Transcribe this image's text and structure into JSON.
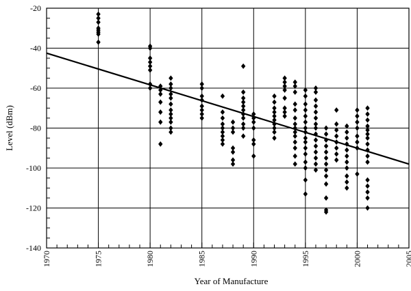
{
  "chart_data": {
    "type": "scatter",
    "title": "",
    "xlabel": "Year of Manufacture",
    "ylabel": "Level (dBm)",
    "xlim": [
      1970,
      2005
    ],
    "ylim": [
      -140,
      -20
    ],
    "x_ticks": [
      1970,
      1975,
      1980,
      1985,
      1990,
      1995,
      2000,
      2005
    ],
    "y_ticks": [
      -20,
      -40,
      -60,
      -80,
      -100,
      -120,
      -140
    ],
    "x_minor_step": 1,
    "y_minor_step": 5,
    "grid": true,
    "legend": "none",
    "marker_color": "#000000",
    "marker": "diamond",
    "series": [
      {
        "points": [
          [
            1975,
            -23
          ],
          [
            1975,
            -25
          ],
          [
            1975,
            -27
          ],
          [
            1975,
            -30
          ],
          [
            1975,
            -31
          ],
          [
            1975,
            -32
          ],
          [
            1975,
            -33
          ],
          [
            1975,
            -37
          ],
          [
            1980,
            -39
          ],
          [
            1980,
            -40
          ],
          [
            1980,
            -45
          ],
          [
            1980,
            -47
          ],
          [
            1980,
            -49
          ],
          [
            1980,
            -51
          ],
          [
            1980,
            -58
          ],
          [
            1980,
            -60
          ],
          [
            1981,
            -59
          ],
          [
            1981,
            -61
          ],
          [
            1981,
            -63
          ],
          [
            1981,
            -67
          ],
          [
            1981,
            -72
          ],
          [
            1981,
            -77
          ],
          [
            1981,
            -88
          ],
          [
            1982,
            -55
          ],
          [
            1982,
            -58
          ],
          [
            1982,
            -60
          ],
          [
            1982,
            -63
          ],
          [
            1982,
            -65
          ],
          [
            1982,
            -68
          ],
          [
            1982,
            -71
          ],
          [
            1982,
            -73
          ],
          [
            1982,
            -75
          ],
          [
            1982,
            -77
          ],
          [
            1982,
            -80
          ],
          [
            1982,
            -82
          ],
          [
            1985,
            -58
          ],
          [
            1985,
            -60
          ],
          [
            1985,
            -64
          ],
          [
            1985,
            -66
          ],
          [
            1985,
            -69
          ],
          [
            1985,
            -71
          ],
          [
            1985,
            -73
          ],
          [
            1985,
            -75
          ],
          [
            1987,
            -64
          ],
          [
            1987,
            -72
          ],
          [
            1987,
            -75
          ],
          [
            1987,
            -78
          ],
          [
            1987,
            -80
          ],
          [
            1987,
            -82
          ],
          [
            1987,
            -84
          ],
          [
            1987,
            -86
          ],
          [
            1987,
            -88
          ],
          [
            1988,
            -77
          ],
          [
            1988,
            -80
          ],
          [
            1988,
            -82
          ],
          [
            1988,
            -90
          ],
          [
            1988,
            -92
          ],
          [
            1988,
            -96
          ],
          [
            1988,
            -98
          ],
          [
            1989,
            -49
          ],
          [
            1989,
            -62
          ],
          [
            1989,
            -65
          ],
          [
            1989,
            -67
          ],
          [
            1989,
            -69
          ],
          [
            1989,
            -71
          ],
          [
            1989,
            -73
          ],
          [
            1989,
            -75
          ],
          [
            1989,
            -78
          ],
          [
            1989,
            -80
          ],
          [
            1989,
            -84
          ],
          [
            1990,
            -73
          ],
          [
            1990,
            -75
          ],
          [
            1990,
            -77
          ],
          [
            1990,
            -80
          ],
          [
            1990,
            -86
          ],
          [
            1990,
            -88
          ],
          [
            1990,
            -94
          ],
          [
            1992,
            -64
          ],
          [
            1992,
            -67
          ],
          [
            1992,
            -70
          ],
          [
            1992,
            -72
          ],
          [
            1992,
            -74
          ],
          [
            1992,
            -76
          ],
          [
            1992,
            -78
          ],
          [
            1992,
            -80
          ],
          [
            1992,
            -82
          ],
          [
            1992,
            -85
          ],
          [
            1993,
            -55
          ],
          [
            1993,
            -57
          ],
          [
            1993,
            -59
          ],
          [
            1993,
            -61
          ],
          [
            1993,
            -65
          ],
          [
            1993,
            -70
          ],
          [
            1993,
            -72
          ],
          [
            1993,
            -74
          ],
          [
            1994,
            -57
          ],
          [
            1994,
            -59
          ],
          [
            1994,
            -62
          ],
          [
            1994,
            -68
          ],
          [
            1994,
            -71
          ],
          [
            1994,
            -75
          ],
          [
            1994,
            -78
          ],
          [
            1994,
            -80
          ],
          [
            1994,
            -82
          ],
          [
            1994,
            -84
          ],
          [
            1994,
            -87
          ],
          [
            1994,
            -90
          ],
          [
            1994,
            -94
          ],
          [
            1994,
            -98
          ],
          [
            1995,
            -61
          ],
          [
            1995,
            -64
          ],
          [
            1995,
            -68
          ],
          [
            1995,
            -71
          ],
          [
            1995,
            -74
          ],
          [
            1995,
            -77
          ],
          [
            1995,
            -80
          ],
          [
            1995,
            -82
          ],
          [
            1995,
            -85
          ],
          [
            1995,
            -87
          ],
          [
            1995,
            -90
          ],
          [
            1995,
            -93
          ],
          [
            1995,
            -97
          ],
          [
            1995,
            -100
          ],
          [
            1995,
            -106
          ],
          [
            1995,
            -113
          ],
          [
            1996,
            -60
          ],
          [
            1996,
            -62
          ],
          [
            1996,
            -66
          ],
          [
            1996,
            -69
          ],
          [
            1996,
            -72
          ],
          [
            1996,
            -75
          ],
          [
            1996,
            -78
          ],
          [
            1996,
            -80
          ],
          [
            1996,
            -83
          ],
          [
            1996,
            -86
          ],
          [
            1996,
            -89
          ],
          [
            1996,
            -92
          ],
          [
            1996,
            -95
          ],
          [
            1996,
            -98
          ],
          [
            1996,
            -101
          ],
          [
            1997,
            -80
          ],
          [
            1997,
            -83
          ],
          [
            1997,
            -86
          ],
          [
            1997,
            -89
          ],
          [
            1997,
            -92
          ],
          [
            1997,
            -95
          ],
          [
            1997,
            -98
          ],
          [
            1997,
            -101
          ],
          [
            1997,
            -104
          ],
          [
            1997,
            -108
          ],
          [
            1997,
            -115
          ],
          [
            1997,
            -121
          ],
          [
            1997,
            -122
          ],
          [
            1998,
            -71
          ],
          [
            1998,
            -78
          ],
          [
            1998,
            -81
          ],
          [
            1998,
            -84
          ],
          [
            1998,
            -87
          ],
          [
            1998,
            -90
          ],
          [
            1998,
            -93
          ],
          [
            1998,
            -96
          ],
          [
            1999,
            -79
          ],
          [
            1999,
            -82
          ],
          [
            1999,
            -85
          ],
          [
            1999,
            -88
          ],
          [
            1999,
            -91
          ],
          [
            1999,
            -94
          ],
          [
            1999,
            -97
          ],
          [
            1999,
            -100
          ],
          [
            1999,
            -104
          ],
          [
            1999,
            -107
          ],
          [
            1999,
            -110
          ],
          [
            2000,
            -71
          ],
          [
            2000,
            -74
          ],
          [
            2000,
            -77
          ],
          [
            2000,
            -80
          ],
          [
            2000,
            -84
          ],
          [
            2000,
            -87
          ],
          [
            2000,
            -90
          ],
          [
            2000,
            -103
          ],
          [
            2001,
            -70
          ],
          [
            2001,
            -73
          ],
          [
            2001,
            -76
          ],
          [
            2001,
            -79
          ],
          [
            2001,
            -81
          ],
          [
            2001,
            -83
          ],
          [
            2001,
            -85
          ],
          [
            2001,
            -88
          ],
          [
            2001,
            -91
          ],
          [
            2001,
            -94
          ],
          [
            2001,
            -97
          ],
          [
            2001,
            -106
          ],
          [
            2001,
            -109
          ],
          [
            2001,
            -112
          ],
          [
            2001,
            -115
          ],
          [
            2001,
            -120
          ]
        ]
      }
    ],
    "trend_line": {
      "type": "line",
      "points": [
        [
          1970,
          -42.5
        ],
        [
          2005,
          -98
        ]
      ]
    }
  }
}
